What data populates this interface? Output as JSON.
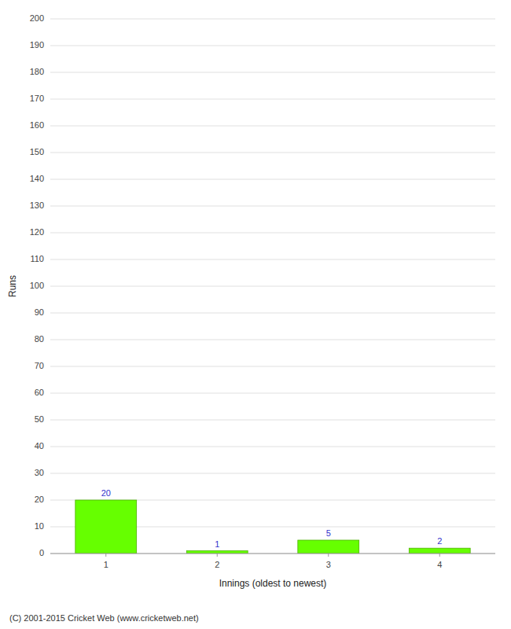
{
  "chart_data": {
    "type": "bar",
    "categories": [
      1,
      2,
      3,
      4
    ],
    "values": [
      20,
      1,
      5,
      2
    ],
    "color": "#66ff00",
    "xlabel": "Innings (oldest to newest)",
    "ylabel": "Runs",
    "ylim": [
      0,
      200
    ],
    "yticks": [
      0,
      10,
      20,
      30,
      40,
      50,
      60,
      70,
      80,
      90,
      100,
      110,
      120,
      130,
      140,
      150,
      160,
      170,
      180,
      190,
      200
    ],
    "grid": true,
    "data_labels": true,
    "annotations": [
      "(C) 2001-2015 Cricket Web (www.cricketweb.net)"
    ]
  }
}
